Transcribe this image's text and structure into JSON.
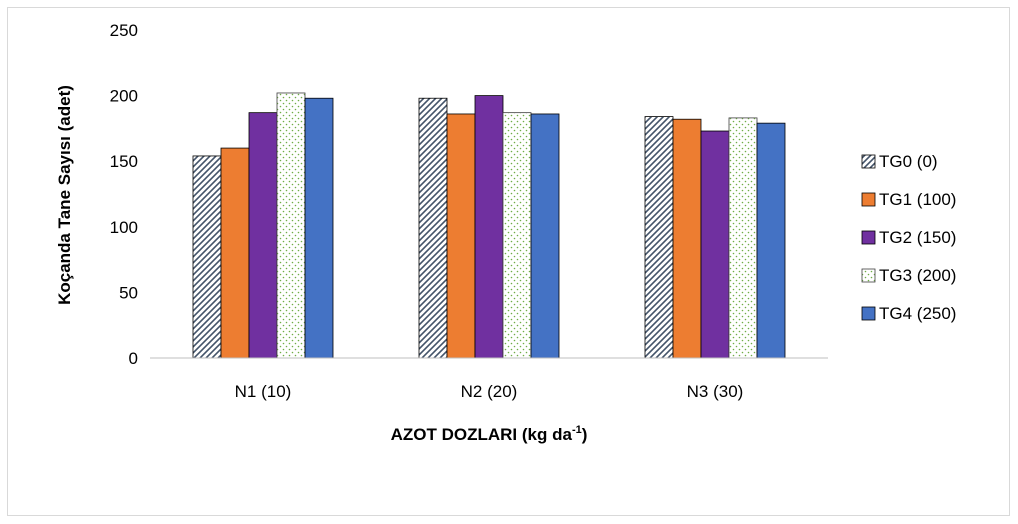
{
  "chart_data": {
    "type": "bar",
    "categories": [
      "N1 (10)",
      "N2 (20)",
      "N3 (30)"
    ],
    "series": [
      {
        "name": "TG0 (0)",
        "values": [
          154,
          198,
          184
        ],
        "pattern": "diagonal-hatch"
      },
      {
        "name": "TG1 (100)",
        "values": [
          160,
          186,
          182
        ],
        "color": "#ed7d31"
      },
      {
        "name": "TG2 (150)",
        "values": [
          187,
          200,
          173
        ],
        "color": "#7030a0"
      },
      {
        "name": "TG3 (200)",
        "values": [
          202,
          187,
          183
        ],
        "pattern": "dotted"
      },
      {
        "name": "TG4 (250)",
        "values": [
          198,
          186,
          179
        ],
        "color": "#4472c4"
      }
    ],
    "ylim": [
      0,
      250
    ],
    "yticks": [
      0,
      50,
      100,
      150,
      200,
      250
    ],
    "xlabel_main": "AZOT DOZLARI (kg da",
    "xlabel_sup": "-1",
    "xlabel_end": ")",
    "ylabel": "Koçanda Tane Sayısı (adet)",
    "grid": false,
    "legend": "right"
  }
}
